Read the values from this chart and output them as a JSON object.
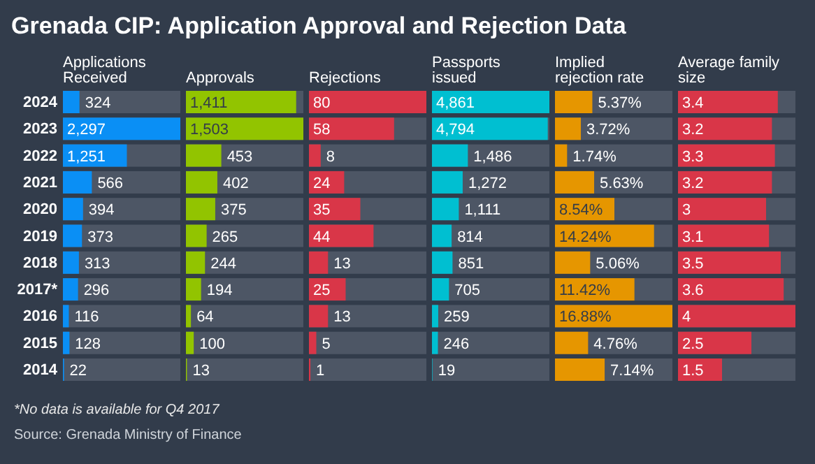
{
  "chart_data": [
    {
      "type": "bar",
      "orientation": "horizontal",
      "title": "Grenada CIP: Application Approval and Rejection Data",
      "xlabel": "Applications Received",
      "categories": [
        "2024",
        "2023",
        "2022",
        "2021",
        "2020",
        "2019",
        "2018",
        "2017*",
        "2016",
        "2015",
        "2014"
      ],
      "values": [
        324,
        2297,
        1251,
        566,
        394,
        373,
        313,
        296,
        116,
        128,
        22
      ],
      "value_labels": [
        "324",
        "2,297",
        "1,251",
        "566",
        "394",
        "373",
        "313",
        "296",
        "116",
        "128",
        "22"
      ],
      "color": "#0a8ff5",
      "xlim": [
        0,
        2297
      ],
      "tick_labels": "y",
      "annotations": [
        "*No data is available for Q4 2017",
        "Source: Grenada Ministry of Finance"
      ]
    },
    {
      "type": "bar",
      "orientation": "horizontal",
      "xlabel": "Approvals",
      "values": [
        1411,
        1503,
        453,
        402,
        375,
        265,
        244,
        194,
        64,
        100,
        13
      ],
      "value_labels": [
        "1,411",
        "1,503",
        "453",
        "402",
        "375",
        "265",
        "244",
        "194",
        "64",
        "100",
        "13"
      ],
      "color": "#92c400",
      "xlim": [
        0,
        1503
      ],
      "tick_labels": false
    },
    {
      "type": "bar",
      "orientation": "horizontal",
      "xlabel": "Rejections",
      "values": [
        80,
        58,
        8,
        24,
        35,
        44,
        13,
        25,
        13,
        5,
        1
      ],
      "value_labels": [
        "80",
        "58",
        "8",
        "24",
        "35",
        "44",
        "13",
        "25",
        "13",
        "5",
        "1"
      ],
      "color": "#d93648",
      "xlim": [
        0,
        80
      ],
      "tick_labels": false
    },
    {
      "type": "bar",
      "orientation": "horizontal",
      "xlabel": "Passports issued",
      "values": [
        4861,
        4794,
        1486,
        1272,
        1111,
        814,
        851,
        705,
        259,
        246,
        19
      ],
      "value_labels": [
        "4,861",
        "4,794",
        "1,486",
        "1,272",
        "1,111",
        "814",
        "851",
        "705",
        "259",
        "246",
        "19"
      ],
      "color": "#00bfd1",
      "xlim": [
        0,
        4861
      ],
      "tick_labels": false
    },
    {
      "type": "bar",
      "orientation": "horizontal",
      "xlabel": "Implied rejection rate",
      "values": [
        5.37,
        3.72,
        1.74,
        5.63,
        8.54,
        14.24,
        5.06,
        11.42,
        16.88,
        4.76,
        7.14
      ],
      "value_labels": [
        "5.37%",
        "3.72%",
        "1.74%",
        "5.63%",
        "8.54%",
        "14.24%",
        "5.06%",
        "11.42%",
        "16.88%",
        "4.76%",
        "7.14%"
      ],
      "color": "#e69600",
      "xlim": [
        0,
        16.88
      ],
      "tick_labels": false
    },
    {
      "type": "bar",
      "orientation": "horizontal",
      "xlabel": "Average family size",
      "values": [
        3.4,
        3.2,
        3.3,
        3.2,
        3,
        3.1,
        3.5,
        3.6,
        4,
        2.5,
        1.5
      ],
      "value_labels": [
        "3.4",
        "3.2",
        "3.3",
        "3.2",
        "3",
        "3.1",
        "3.5",
        "3.6",
        "4",
        "2.5",
        "1.5"
      ],
      "color": "#d93648",
      "xlim": [
        0,
        4
      ],
      "tick_labels": false
    }
  ]
}
